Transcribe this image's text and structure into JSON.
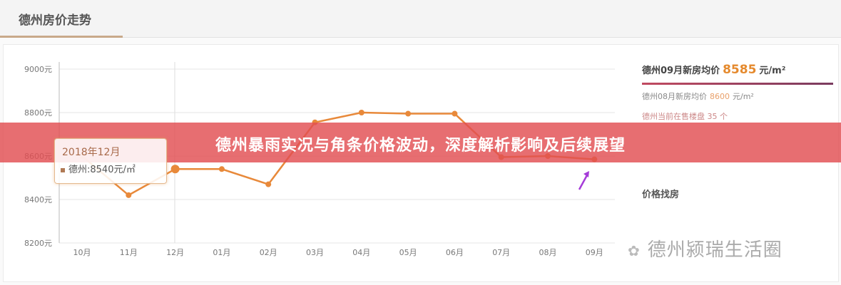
{
  "header": {
    "title": "德州房价走势"
  },
  "banner": {
    "headline": "德州暴雨实况与角条价格波动，深度解析影响及后续展望"
  },
  "tooltip": {
    "title": "2018年12月",
    "value": "德州:8540元/㎡"
  },
  "panel": {
    "current_label": "德州09月新房均价",
    "current_value": "8585",
    "current_unit": "元/m²",
    "prev_label": "德州08月新房均价",
    "prev_value": "8600",
    "prev_unit": "元/m²",
    "onsale_label": "德州当前在售楼盘",
    "onsale_value": "35",
    "onsale_unit": "个",
    "find_label": "价格找房"
  },
  "watermark": {
    "text": "德州颍瑞生活圈"
  },
  "colors": {
    "line": "#e8893a",
    "accent": "#e58a2e",
    "banner": "#e24e52"
  },
  "chart_data": {
    "type": "line",
    "title": "",
    "categories": [
      "10月",
      "11月",
      "12月",
      "01月",
      "02月",
      "03月",
      "04月",
      "05月",
      "06月",
      "07月",
      "08月",
      "09月"
    ],
    "values": [
      8600,
      8420,
      8540,
      8540,
      8470,
      8755,
      8800,
      8795,
      8795,
      8595,
      8600,
      8585
    ],
    "yticks": [
      "8200元",
      "8400元",
      "8600元",
      "8800元",
      "9000元"
    ],
    "ylim": [
      8200,
      9000
    ],
    "grid": true
  }
}
